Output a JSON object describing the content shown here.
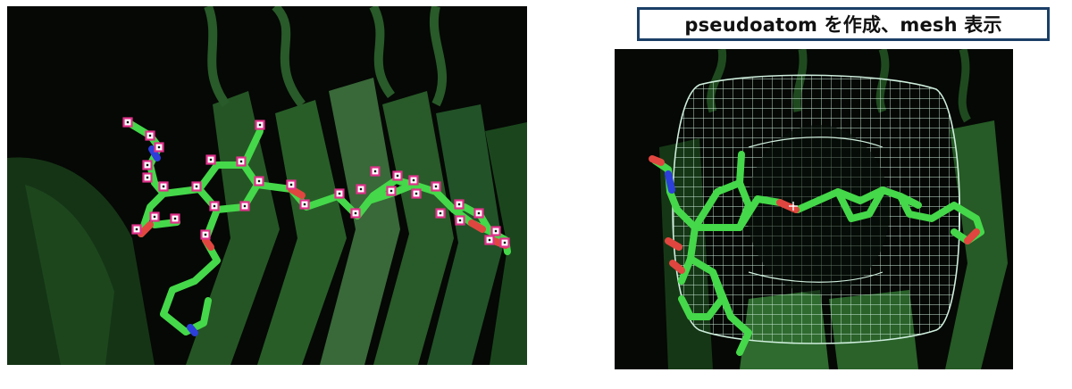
{
  "caption": {
    "text": "pseudoatom を作成、mesh 表示"
  },
  "colors": {
    "background": "#050805",
    "protein_dark": "#1f4a1f",
    "protein_mid": "#2f6b2f",
    "ligand_carbon": "#45d84a",
    "oxygen": "#e0463f",
    "nitrogen": "#2c3fd9",
    "selection_marker": "#e0318a",
    "mesh": "#cfeedd",
    "caption_border": "#1b3f67"
  },
  "panels": {
    "left": {
      "content": "ligand-with-selected-atoms"
    },
    "right": {
      "content": "ligand-with-pseudoatom-mesh"
    }
  }
}
